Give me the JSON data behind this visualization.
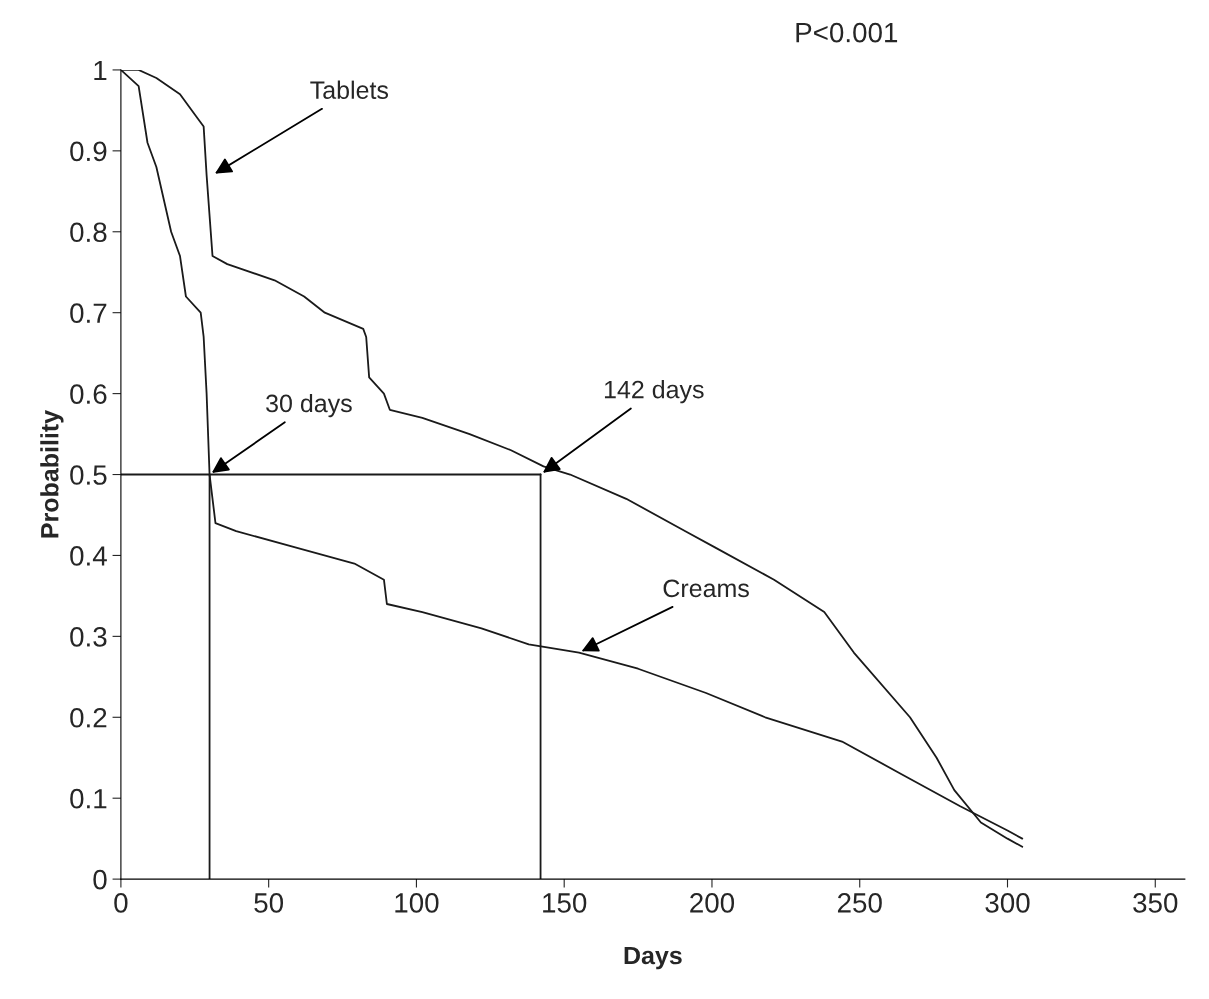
{
  "chart_data": {
    "type": "line",
    "xlabel": "Days",
    "ylabel": "Probability",
    "xlim": [
      0,
      360
    ],
    "xticks": [
      0,
      50,
      100,
      150,
      200,
      250,
      300,
      350
    ],
    "ylim": [
      0,
      1
    ],
    "yticks": [
      0,
      0.1,
      0.2,
      0.3,
      0.4,
      0.5,
      0.6,
      0.7,
      0.8,
      0.9,
      1
    ],
    "grid": false,
    "legend": false,
    "series": [
      {
        "color": "#1a1a1a",
        "x": [
          0,
          6,
          12,
          20,
          26,
          28,
          29,
          31,
          36,
          52,
          62,
          69,
          82,
          83,
          84,
          89,
          91,
          102,
          118,
          132,
          143,
          152,
          171,
          191,
          201,
          221,
          238,
          248,
          267,
          276,
          282,
          291,
          300,
          305
        ],
        "values": [
          1,
          1,
          0.99,
          0.97,
          0.94,
          0.93,
          0.87,
          0.77,
          0.76,
          0.74,
          0.72,
          0.7,
          0.68,
          0.67,
          0.62,
          0.6,
          0.58,
          0.57,
          0.55,
          0.53,
          0.51,
          0.5,
          0.47,
          0.43,
          0.41,
          0.37,
          0.33,
          0.28,
          0.2,
          0.15,
          0.11,
          0.07,
          0.05,
          0.04
        ]
      },
      {
        "color": "#1a1a1a",
        "x": [
          0,
          6,
          9,
          12,
          17,
          20,
          22,
          27,
          28,
          29,
          30,
          32,
          39,
          59,
          79,
          89,
          90,
          102,
          122,
          138,
          155,
          175,
          198,
          218,
          244,
          264,
          284,
          300,
          305
        ],
        "values": [
          1,
          0.98,
          0.91,
          0.88,
          0.8,
          0.77,
          0.72,
          0.7,
          0.67,
          0.6,
          0.5,
          0.44,
          0.43,
          0.41,
          0.39,
          0.37,
          0.34,
          0.33,
          0.31,
          0.29,
          0.28,
          0.26,
          0.23,
          0.2,
          0.17,
          0.13,
          0.09,
          0.06,
          0.05
        ]
      },
      {
        "color": "#1a1a1a",
        "x": [
          0,
          142
        ],
        "values": [
          0.5,
          0.5
        ]
      },
      {
        "color": "#1a1a1a",
        "x": [
          30,
          30
        ],
        "values": [
          0,
          0.5
        ]
      },
      {
        "color": "#1a1a1a",
        "x": [
          142,
          142
        ],
        "values": [
          0,
          0.5
        ]
      }
    ],
    "annotations": [
      {
        "text": "Tablets",
        "x": 31,
        "y": 0.87
      },
      {
        "text": "Creams",
        "x": 155,
        "y": 0.28
      },
      {
        "text": "30 days",
        "x": 30,
        "y": 0.5
      },
      {
        "text": "142 days",
        "x": 142,
        "y": 0.5
      },
      "P<0.001"
    ]
  }
}
